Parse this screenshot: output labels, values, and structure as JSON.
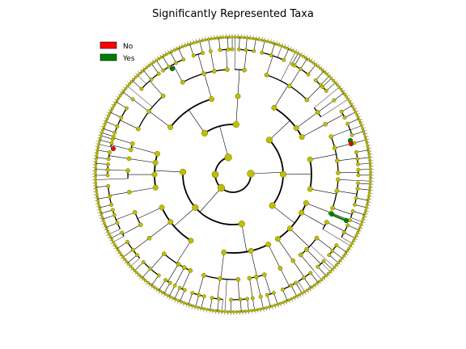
{
  "figure": {
    "title": "Significantly Represented Taxa"
  },
  "legend": {
    "items": [
      {
        "label": "No",
        "color": "#ff0000"
      },
      {
        "label": "Yes",
        "color": "#008000"
      }
    ]
  },
  "colors": {
    "node_default": "#bfbf00",
    "node_stroke": "#6b6b00",
    "leaf_fill": "#bfbf00",
    "edge": "#000000",
    "significant_yes": "#008000",
    "significant_no": "#ff0000"
  },
  "tree": {
    "style": "radial cladogram",
    "root_label": ""
  }
}
